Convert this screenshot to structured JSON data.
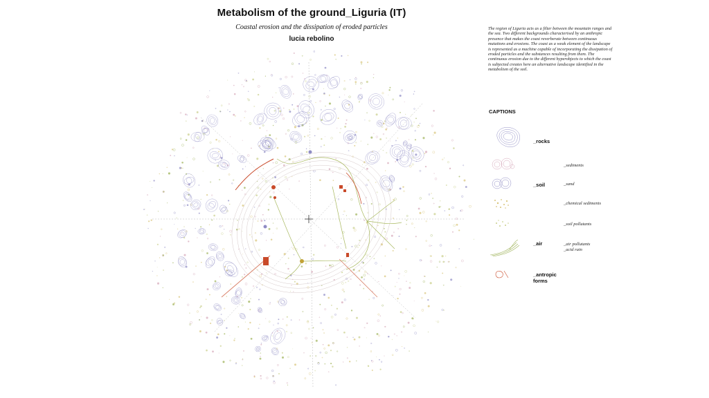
{
  "header": {
    "title": "Metabolism of the ground_Liguria (IT)",
    "subtitle": "Coastal erosion and the dissipation of eroded particles",
    "author": "lucia rebolino"
  },
  "description": "The region of Liguria acts as a filter between the mountain ranges and the sea. Two different backgrounds characterised by an anthropic presence that makes the coast reverberate between continuous mutations and erosions. The coast as a weak element of the landscape is represented as a machine capable of incorporating the dissipation of eroded particles and the substances resulting from them.  The continuous erosion due to the different hyperobjects to which the coast is subjected creates here an alternative landscape identified in the metabolism of the soil.",
  "captions": {
    "heading": "CAPTIONS",
    "categories": [
      {
        "label": "_rocks"
      },
      {
        "label": "_soil"
      },
      {
        "label": "_air"
      },
      {
        "label": "_antropic forms"
      }
    ],
    "sublabels": [
      "_sediments",
      "_sand",
      "_chemical sediments",
      "_soil pollutants",
      "_air pollutants\n_acid rain"
    ]
  },
  "colors": {
    "rocks": "#8f8cc4",
    "sediments": "#d5a6b8",
    "soil_pollutants": "#c9cf8a",
    "chemical": "#d8c479",
    "air": "#9fb35a",
    "antropic": "#c94a2a",
    "linework": "#b9b9b9"
  }
}
